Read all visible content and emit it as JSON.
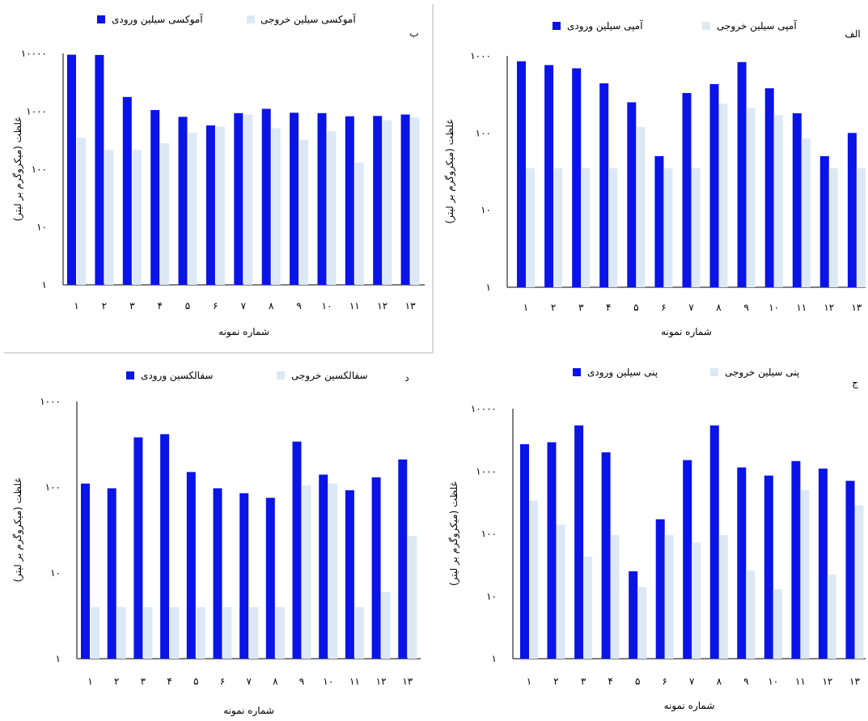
{
  "colors": {
    "inflow": "#0a14e6",
    "outflow": "#dce9f5",
    "axis": "#000000",
    "frame": "#b4b4b4"
  },
  "chart_data": [
    {
      "type": "bar",
      "panel": "ب",
      "log_scale": true,
      "ylim": [
        1,
        10000
      ],
      "y_ticks": [
        1,
        10,
        100,
        1000,
        10000
      ],
      "y_tick_labels": [
        "۱",
        "۱۰",
        "۱۰۰",
        "۱۰۰۰",
        "۱۰۰۰۰"
      ],
      "ylabel": "غلظت (میکروگرم بر لیتر)",
      "xlabel": "شماره نمونه",
      "categories": [
        "۱",
        "۲",
        "۳",
        "۴",
        "۵",
        "۶",
        "۷",
        "۸",
        "۹",
        "۱۰",
        "۱۱",
        "۱۲",
        "۱۳"
      ],
      "legend_position": "top",
      "series": [
        {
          "name": "آموکسی سیلین ورودی",
          "color": "#0a14e6",
          "values": [
            9500,
            9400,
            1770,
            1050,
            800,
            570,
            930,
            1100,
            945,
            930,
            820,
            830,
            880
          ]
        },
        {
          "name": "آموکسی سیلین خروجی",
          "color": "#dce9f5",
          "values": [
            350,
            215,
            215,
            280,
            430,
            540,
            880,
            510,
            320,
            450,
            130,
            700,
            780
          ]
        }
      ]
    },
    {
      "type": "bar",
      "panel": "الف",
      "log_scale": true,
      "ylim": [
        1,
        1000
      ],
      "y_ticks": [
        1,
        10,
        100,
        1000
      ],
      "y_tick_labels": [
        "۱",
        "۱۰",
        "۱۰۰",
        "۱۰۰۰"
      ],
      "ylabel": "غلظت (میکروگرم بر لیتر)",
      "xlabel": "شماره نمونه",
      "categories": [
        "۱",
        "۲",
        "۳",
        "۴",
        "۵",
        "۶",
        "۷",
        "۸",
        "۹",
        "۱۰",
        "۱۱",
        "۱۲",
        "۱۳"
      ],
      "legend_position": "top",
      "series": [
        {
          "name": "آمپی سیلین ورودی",
          "color": "#0a14e6",
          "values": [
            850,
            760,
            690,
            440,
            250,
            50,
            330,
            430,
            830,
            380,
            180,
            50,
            100
          ]
        },
        {
          "name": "آمپی سیلین خروجی",
          "color": "#dce9f5",
          "values": [
            35,
            35,
            35,
            35,
            120,
            35,
            35,
            240,
            210,
            170,
            85,
            35,
            35
          ]
        }
      ]
    },
    {
      "type": "bar",
      "panel": "د",
      "log_scale": true,
      "ylim": [
        1,
        1000
      ],
      "y_ticks": [
        1,
        10,
        100,
        1000
      ],
      "y_tick_labels": [
        "۱",
        "۱۰",
        "۱۰۰",
        "۱۰۰۰"
      ],
      "ylabel": "غلظت (میکروگرم بر لیتر)",
      "xlabel": "شماره نمونه",
      "categories": [
        "۱",
        "۲",
        "۳",
        "۴",
        "۵",
        "۶",
        "۷",
        "۸",
        "۹",
        "۱۰",
        "۱۱",
        "۱۲",
        "۱۳"
      ],
      "legend_position": "top",
      "series": [
        {
          "name": "سفالکسین ورودی",
          "color": "#0a14e6",
          "values": [
            110,
            97,
            380,
            415,
            150,
            97,
            85,
            75,
            340,
            140,
            92,
            130,
            210
          ]
        },
        {
          "name": "سفالکسین خروجی",
          "color": "#dce9f5",
          "values": [
            4,
            4,
            4,
            4,
            4,
            4,
            4,
            4,
            105,
            110,
            4,
            6,
            27
          ]
        }
      ]
    },
    {
      "type": "bar",
      "panel": "ج",
      "log_scale": true,
      "ylim": [
        1,
        10000
      ],
      "y_ticks": [
        1,
        10,
        100,
        1000,
        10000
      ],
      "y_tick_labels": [
        "۱",
        "۱۰",
        "۱۰۰",
        "۱۰۰۰",
        "۱۰۰۰۰"
      ],
      "ylabel": "غلظت (میکروگرم بر لیتر)",
      "xlabel": "شماره نمونه",
      "categories": [
        "۱",
        "۲",
        "۳",
        "۴",
        "۵",
        "۶",
        "۷",
        "۸",
        "۹",
        "۱۰",
        "۱۱",
        "۱۲",
        "۱۳"
      ],
      "legend_position": "top",
      "series": [
        {
          "name": "پنی سیلین ورودی",
          "color": "#0a14e6",
          "values": [
            2700,
            2900,
            5400,
            2000,
            25,
            170,
            1500,
            5400,
            1150,
            850,
            1450,
            1100,
            700
          ]
        },
        {
          "name": "پنی سیلین خروجی",
          "color": "#dce9f5",
          "values": [
            340,
            140,
            43,
            95,
            14,
            95,
            72,
            95,
            26,
            13,
            500,
            22,
            285
          ]
        }
      ]
    }
  ]
}
